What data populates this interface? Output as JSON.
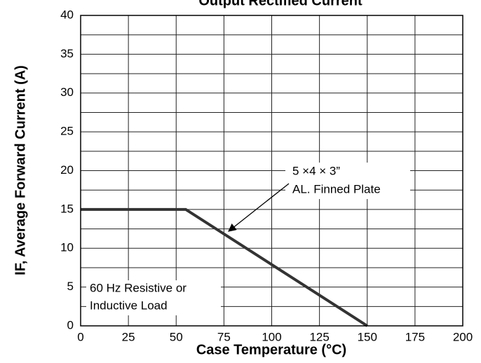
{
  "chart_data": {
    "type": "line",
    "title": "Output Rectified Current",
    "xlabel": "Case Temperature (°C)",
    "ylabel": "IF, Average Forward Current (A)",
    "x": [
      0,
      55,
      150
    ],
    "series": [
      {
        "name": "5 ×4 × 3” AL. Finned Plate",
        "color": "#333333",
        "values": [
          15,
          15,
          0
        ]
      }
    ],
    "xlim": [
      0,
      200
    ],
    "xticks": [
      0,
      25,
      50,
      75,
      100,
      125,
      150,
      175,
      200
    ],
    "ylim": [
      0,
      40
    ],
    "yticks": [
      0,
      5,
      10,
      15,
      20,
      25,
      30,
      35,
      40
    ],
    "y_minor_ticks": [
      2.5,
      7.5,
      12.5,
      17.5,
      22.5,
      27.5,
      32.5,
      37.5
    ],
    "grid": true,
    "annotations": [
      "5 ×4 × 3”",
      "AL. Finned Plate",
      "60 Hz Resistive or",
      "Inductive Load"
    ]
  }
}
